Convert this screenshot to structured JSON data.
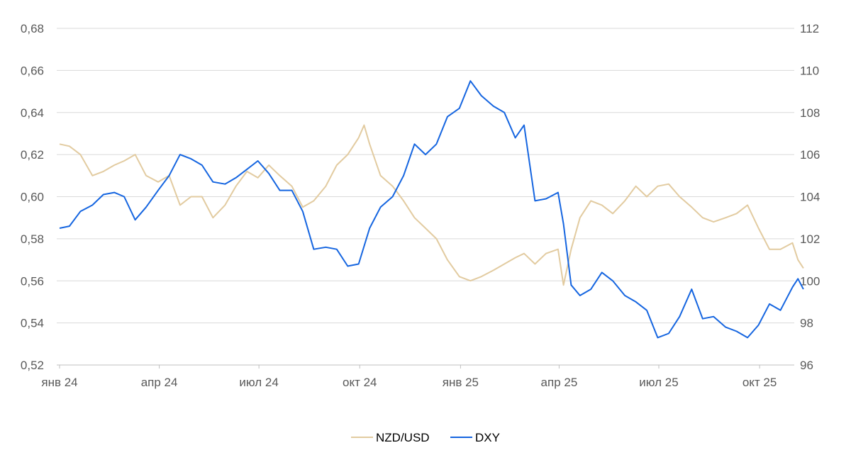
{
  "chart_data": {
    "type": "line",
    "x_format": "YYYY-MM",
    "x_range": [
      "2024-01",
      "2025-11"
    ],
    "x_ticks": [
      {
        "label": "янв 24",
        "date": "2024-01"
      },
      {
        "label": "апр 24",
        "date": "2024-04"
      },
      {
        "label": "июл 24",
        "date": "2024-07"
      },
      {
        "label": "окт 24",
        "date": "2024-10"
      },
      {
        "label": "янв 25",
        "date": "2025-01"
      },
      {
        "label": "апр 25",
        "date": "2025-04"
      },
      {
        "label": "июл 25",
        "date": "2025-07"
      },
      {
        "label": "окт 25",
        "date": "2025-10"
      }
    ],
    "y_left": {
      "ylim": [
        0.52,
        0.68
      ],
      "ticks": [
        "0,52",
        "0,54",
        "0,56",
        "0,58",
        "0,60",
        "0,62",
        "0,64",
        "0,66",
        "0,68"
      ]
    },
    "y_right": {
      "ylim": [
        96,
        112
      ],
      "ticks": [
        "96",
        "98",
        "100",
        "102",
        "104",
        "106",
        "108",
        "110",
        "112"
      ]
    },
    "grid": true,
    "legend": "bottom-center",
    "series": [
      {
        "name": "NZD/USD",
        "axis": "left",
        "color": "#E2CBA0",
        "points": [
          [
            "2024-01-01",
            0.625
          ],
          [
            "2024-01-10",
            0.624
          ],
          [
            "2024-01-20",
            0.62
          ],
          [
            "2024-01-31",
            0.61
          ],
          [
            "2024-02-10",
            0.612
          ],
          [
            "2024-02-20",
            0.615
          ],
          [
            "2024-02-29",
            0.617
          ],
          [
            "2024-03-10",
            0.62
          ],
          [
            "2024-03-20",
            0.61
          ],
          [
            "2024-03-31",
            0.607
          ],
          [
            "2024-04-10",
            0.61
          ],
          [
            "2024-04-20",
            0.596
          ],
          [
            "2024-04-30",
            0.6
          ],
          [
            "2024-05-10",
            0.6
          ],
          [
            "2024-05-20",
            0.59
          ],
          [
            "2024-05-31",
            0.596
          ],
          [
            "2024-06-10",
            0.605
          ],
          [
            "2024-06-20",
            0.612
          ],
          [
            "2024-06-30",
            0.609
          ],
          [
            "2024-07-10",
            0.615
          ],
          [
            "2024-07-20",
            0.61
          ],
          [
            "2024-07-31",
            0.605
          ],
          [
            "2024-08-10",
            0.595
          ],
          [
            "2024-08-20",
            0.598
          ],
          [
            "2024-08-31",
            0.605
          ],
          [
            "2024-09-10",
            0.615
          ],
          [
            "2024-09-20",
            0.62
          ],
          [
            "2024-09-30",
            0.628
          ],
          [
            "2024-10-05",
            0.634
          ],
          [
            "2024-10-10",
            0.625
          ],
          [
            "2024-10-20",
            0.61
          ],
          [
            "2024-10-31",
            0.605
          ],
          [
            "2024-11-10",
            0.598
          ],
          [
            "2024-11-20",
            0.59
          ],
          [
            "2024-11-30",
            0.585
          ],
          [
            "2024-12-10",
            0.58
          ],
          [
            "2024-12-20",
            0.57
          ],
          [
            "2024-12-31",
            0.562
          ],
          [
            "2025-01-10",
            0.56
          ],
          [
            "2025-01-20",
            0.562
          ],
          [
            "2025-01-31",
            0.565
          ],
          [
            "2025-02-10",
            0.568
          ],
          [
            "2025-02-20",
            0.571
          ],
          [
            "2025-02-28",
            0.573
          ],
          [
            "2025-03-10",
            0.568
          ],
          [
            "2025-03-20",
            0.573
          ],
          [
            "2025-03-31",
            0.575
          ],
          [
            "2025-04-05",
            0.558
          ],
          [
            "2025-04-12",
            0.575
          ],
          [
            "2025-04-20",
            0.59
          ],
          [
            "2025-04-30",
            0.598
          ],
          [
            "2025-05-10",
            0.596
          ],
          [
            "2025-05-20",
            0.592
          ],
          [
            "2025-05-31",
            0.598
          ],
          [
            "2025-06-10",
            0.605
          ],
          [
            "2025-06-20",
            0.6
          ],
          [
            "2025-06-30",
            0.605
          ],
          [
            "2025-07-10",
            0.606
          ],
          [
            "2025-07-20",
            0.6
          ],
          [
            "2025-07-31",
            0.595
          ],
          [
            "2025-08-10",
            0.59
          ],
          [
            "2025-08-20",
            0.588
          ],
          [
            "2025-08-31",
            0.59
          ],
          [
            "2025-09-10",
            0.592
          ],
          [
            "2025-09-20",
            0.596
          ],
          [
            "2025-09-30",
            0.585
          ],
          [
            "2025-10-10",
            0.575
          ],
          [
            "2025-10-20",
            0.575
          ],
          [
            "2025-10-31",
            0.578
          ],
          [
            "2025-11-05",
            0.57
          ],
          [
            "2025-11-10",
            0.566
          ]
        ]
      },
      {
        "name": "DXY",
        "axis": "right",
        "color": "#1565E0",
        "points": [
          [
            "2024-01-01",
            102.5
          ],
          [
            "2024-01-10",
            102.6
          ],
          [
            "2024-01-20",
            103.3
          ],
          [
            "2024-01-31",
            103.6
          ],
          [
            "2024-02-10",
            104.1
          ],
          [
            "2024-02-20",
            104.2
          ],
          [
            "2024-02-29",
            104.0
          ],
          [
            "2024-03-10",
            102.9
          ],
          [
            "2024-03-20",
            103.5
          ],
          [
            "2024-03-31",
            104.3
          ],
          [
            "2024-04-10",
            105.0
          ],
          [
            "2024-04-20",
            106.0
          ],
          [
            "2024-04-30",
            105.8
          ],
          [
            "2024-05-10",
            105.5
          ],
          [
            "2024-05-20",
            104.7
          ],
          [
            "2024-05-31",
            104.6
          ],
          [
            "2024-06-10",
            104.9
          ],
          [
            "2024-06-20",
            105.3
          ],
          [
            "2024-06-30",
            105.7
          ],
          [
            "2024-07-10",
            105.1
          ],
          [
            "2024-07-20",
            104.3
          ],
          [
            "2024-07-31",
            104.3
          ],
          [
            "2024-08-10",
            103.3
          ],
          [
            "2024-08-20",
            101.5
          ],
          [
            "2024-08-31",
            101.6
          ],
          [
            "2024-09-10",
            101.5
          ],
          [
            "2024-09-20",
            100.7
          ],
          [
            "2024-09-30",
            100.8
          ],
          [
            "2024-10-10",
            102.5
          ],
          [
            "2024-10-20",
            103.5
          ],
          [
            "2024-10-31",
            104.0
          ],
          [
            "2024-11-10",
            105.0
          ],
          [
            "2024-11-20",
            106.5
          ],
          [
            "2024-11-30",
            106.0
          ],
          [
            "2024-12-10",
            106.5
          ],
          [
            "2024-12-20",
            107.8
          ],
          [
            "2024-12-31",
            108.2
          ],
          [
            "2025-01-10",
            109.5
          ],
          [
            "2025-01-20",
            108.8
          ],
          [
            "2025-01-31",
            108.3
          ],
          [
            "2025-02-10",
            108.0
          ],
          [
            "2025-02-20",
            106.8
          ],
          [
            "2025-02-28",
            107.4
          ],
          [
            "2025-03-10",
            103.8
          ],
          [
            "2025-03-20",
            103.9
          ],
          [
            "2025-03-31",
            104.2
          ],
          [
            "2025-04-05",
            102.7
          ],
          [
            "2025-04-12",
            99.8
          ],
          [
            "2025-04-20",
            99.3
          ],
          [
            "2025-04-30",
            99.6
          ],
          [
            "2025-05-10",
            100.4
          ],
          [
            "2025-05-20",
            100.0
          ],
          [
            "2025-05-31",
            99.3
          ],
          [
            "2025-06-10",
            99.0
          ],
          [
            "2025-06-20",
            98.6
          ],
          [
            "2025-06-30",
            97.3
          ],
          [
            "2025-07-10",
            97.5
          ],
          [
            "2025-07-20",
            98.3
          ],
          [
            "2025-07-31",
            99.6
          ],
          [
            "2025-08-10",
            98.2
          ],
          [
            "2025-08-20",
            98.3
          ],
          [
            "2025-08-31",
            97.8
          ],
          [
            "2025-09-10",
            97.6
          ],
          [
            "2025-09-20",
            97.3
          ],
          [
            "2025-09-30",
            97.9
          ],
          [
            "2025-10-10",
            98.9
          ],
          [
            "2025-10-20",
            98.6
          ],
          [
            "2025-10-31",
            99.7
          ],
          [
            "2025-11-05",
            100.1
          ],
          [
            "2025-11-10",
            99.6
          ]
        ]
      }
    ]
  }
}
